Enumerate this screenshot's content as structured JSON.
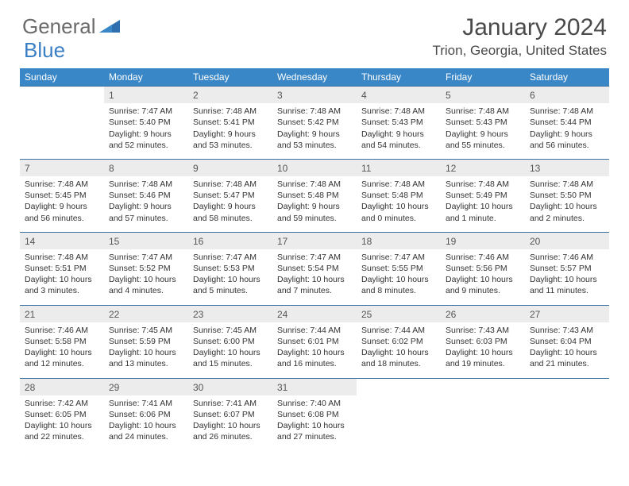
{
  "logo": {
    "general": "General",
    "blue": "Blue"
  },
  "title": "January 2024",
  "location": "Trion, Georgia, United States",
  "colors": {
    "header_bg": "#3a87c7",
    "header_text": "#ffffff",
    "daynum_bg": "#ececec",
    "border": "#3a6fa0",
    "logo_gray": "#6b6b6b",
    "logo_blue": "#3a7fc4"
  },
  "weekdays": [
    "Sunday",
    "Monday",
    "Tuesday",
    "Wednesday",
    "Thursday",
    "Friday",
    "Saturday"
  ],
  "weeks": [
    [
      null,
      {
        "n": "1",
        "sr": "Sunrise: 7:47 AM",
        "ss": "Sunset: 5:40 PM",
        "d1": "Daylight: 9 hours",
        "d2": "and 52 minutes."
      },
      {
        "n": "2",
        "sr": "Sunrise: 7:48 AM",
        "ss": "Sunset: 5:41 PM",
        "d1": "Daylight: 9 hours",
        "d2": "and 53 minutes."
      },
      {
        "n": "3",
        "sr": "Sunrise: 7:48 AM",
        "ss": "Sunset: 5:42 PM",
        "d1": "Daylight: 9 hours",
        "d2": "and 53 minutes."
      },
      {
        "n": "4",
        "sr": "Sunrise: 7:48 AM",
        "ss": "Sunset: 5:43 PM",
        "d1": "Daylight: 9 hours",
        "d2": "and 54 minutes."
      },
      {
        "n": "5",
        "sr": "Sunrise: 7:48 AM",
        "ss": "Sunset: 5:43 PM",
        "d1": "Daylight: 9 hours",
        "d2": "and 55 minutes."
      },
      {
        "n": "6",
        "sr": "Sunrise: 7:48 AM",
        "ss": "Sunset: 5:44 PM",
        "d1": "Daylight: 9 hours",
        "d2": "and 56 minutes."
      }
    ],
    [
      {
        "n": "7",
        "sr": "Sunrise: 7:48 AM",
        "ss": "Sunset: 5:45 PM",
        "d1": "Daylight: 9 hours",
        "d2": "and 56 minutes."
      },
      {
        "n": "8",
        "sr": "Sunrise: 7:48 AM",
        "ss": "Sunset: 5:46 PM",
        "d1": "Daylight: 9 hours",
        "d2": "and 57 minutes."
      },
      {
        "n": "9",
        "sr": "Sunrise: 7:48 AM",
        "ss": "Sunset: 5:47 PM",
        "d1": "Daylight: 9 hours",
        "d2": "and 58 minutes."
      },
      {
        "n": "10",
        "sr": "Sunrise: 7:48 AM",
        "ss": "Sunset: 5:48 PM",
        "d1": "Daylight: 9 hours",
        "d2": "and 59 minutes."
      },
      {
        "n": "11",
        "sr": "Sunrise: 7:48 AM",
        "ss": "Sunset: 5:48 PM",
        "d1": "Daylight: 10 hours",
        "d2": "and 0 minutes."
      },
      {
        "n": "12",
        "sr": "Sunrise: 7:48 AM",
        "ss": "Sunset: 5:49 PM",
        "d1": "Daylight: 10 hours",
        "d2": "and 1 minute."
      },
      {
        "n": "13",
        "sr": "Sunrise: 7:48 AM",
        "ss": "Sunset: 5:50 PM",
        "d1": "Daylight: 10 hours",
        "d2": "and 2 minutes."
      }
    ],
    [
      {
        "n": "14",
        "sr": "Sunrise: 7:48 AM",
        "ss": "Sunset: 5:51 PM",
        "d1": "Daylight: 10 hours",
        "d2": "and 3 minutes."
      },
      {
        "n": "15",
        "sr": "Sunrise: 7:47 AM",
        "ss": "Sunset: 5:52 PM",
        "d1": "Daylight: 10 hours",
        "d2": "and 4 minutes."
      },
      {
        "n": "16",
        "sr": "Sunrise: 7:47 AM",
        "ss": "Sunset: 5:53 PM",
        "d1": "Daylight: 10 hours",
        "d2": "and 5 minutes."
      },
      {
        "n": "17",
        "sr": "Sunrise: 7:47 AM",
        "ss": "Sunset: 5:54 PM",
        "d1": "Daylight: 10 hours",
        "d2": "and 7 minutes."
      },
      {
        "n": "18",
        "sr": "Sunrise: 7:47 AM",
        "ss": "Sunset: 5:55 PM",
        "d1": "Daylight: 10 hours",
        "d2": "and 8 minutes."
      },
      {
        "n": "19",
        "sr": "Sunrise: 7:46 AM",
        "ss": "Sunset: 5:56 PM",
        "d1": "Daylight: 10 hours",
        "d2": "and 9 minutes."
      },
      {
        "n": "20",
        "sr": "Sunrise: 7:46 AM",
        "ss": "Sunset: 5:57 PM",
        "d1": "Daylight: 10 hours",
        "d2": "and 11 minutes."
      }
    ],
    [
      {
        "n": "21",
        "sr": "Sunrise: 7:46 AM",
        "ss": "Sunset: 5:58 PM",
        "d1": "Daylight: 10 hours",
        "d2": "and 12 minutes."
      },
      {
        "n": "22",
        "sr": "Sunrise: 7:45 AM",
        "ss": "Sunset: 5:59 PM",
        "d1": "Daylight: 10 hours",
        "d2": "and 13 minutes."
      },
      {
        "n": "23",
        "sr": "Sunrise: 7:45 AM",
        "ss": "Sunset: 6:00 PM",
        "d1": "Daylight: 10 hours",
        "d2": "and 15 minutes."
      },
      {
        "n": "24",
        "sr": "Sunrise: 7:44 AM",
        "ss": "Sunset: 6:01 PM",
        "d1": "Daylight: 10 hours",
        "d2": "and 16 minutes."
      },
      {
        "n": "25",
        "sr": "Sunrise: 7:44 AM",
        "ss": "Sunset: 6:02 PM",
        "d1": "Daylight: 10 hours",
        "d2": "and 18 minutes."
      },
      {
        "n": "26",
        "sr": "Sunrise: 7:43 AM",
        "ss": "Sunset: 6:03 PM",
        "d1": "Daylight: 10 hours",
        "d2": "and 19 minutes."
      },
      {
        "n": "27",
        "sr": "Sunrise: 7:43 AM",
        "ss": "Sunset: 6:04 PM",
        "d1": "Daylight: 10 hours",
        "d2": "and 21 minutes."
      }
    ],
    [
      {
        "n": "28",
        "sr": "Sunrise: 7:42 AM",
        "ss": "Sunset: 6:05 PM",
        "d1": "Daylight: 10 hours",
        "d2": "and 22 minutes."
      },
      {
        "n": "29",
        "sr": "Sunrise: 7:41 AM",
        "ss": "Sunset: 6:06 PM",
        "d1": "Daylight: 10 hours",
        "d2": "and 24 minutes."
      },
      {
        "n": "30",
        "sr": "Sunrise: 7:41 AM",
        "ss": "Sunset: 6:07 PM",
        "d1": "Daylight: 10 hours",
        "d2": "and 26 minutes."
      },
      {
        "n": "31",
        "sr": "Sunrise: 7:40 AM",
        "ss": "Sunset: 6:08 PM",
        "d1": "Daylight: 10 hours",
        "d2": "and 27 minutes."
      },
      null,
      null,
      null
    ]
  ]
}
